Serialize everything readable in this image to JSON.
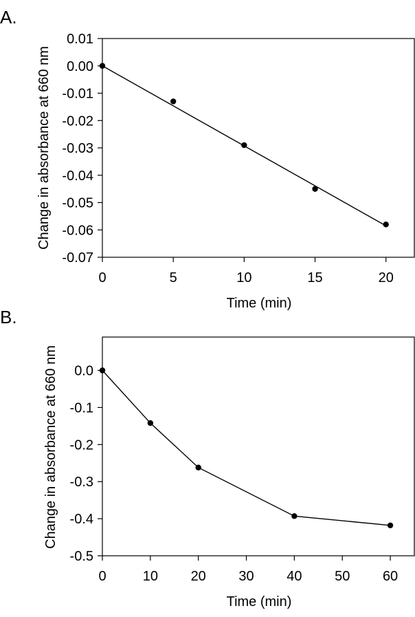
{
  "chart_data": [
    {
      "type": "scatter",
      "panel_label": "A.",
      "title": "",
      "xlabel": "Time (min)",
      "ylabel": "Change in absorbance at 660 nm",
      "xlim": [
        0,
        22
      ],
      "ylim": [
        -0.07,
        0.01
      ],
      "xticks": [
        0,
        5,
        10,
        15,
        20
      ],
      "yticks": [
        0.01,
        0.0,
        -0.01,
        -0.02,
        -0.03,
        -0.04,
        -0.05,
        -0.06,
        -0.07
      ],
      "xtick_labels": [
        "0",
        "5",
        "10",
        "15",
        "20"
      ],
      "ytick_labels": [
        "0.01",
        "0.00",
        "-0.01",
        "-0.02",
        "-0.03",
        "-0.04",
        "-0.05",
        "-0.06",
        "-0.07"
      ],
      "series": [
        {
          "name": "data",
          "x": [
            0,
            5,
            10,
            15,
            20
          ],
          "y": [
            0.0,
            -0.013,
            -0.029,
            -0.045,
            -0.058
          ]
        }
      ],
      "fit_line": {
        "x": [
          0,
          20
        ],
        "y": [
          0.0,
          -0.0585
        ]
      }
    },
    {
      "type": "line",
      "panel_label": "B.",
      "title": "",
      "xlabel": "Time (min)",
      "ylabel": "Change in absorbance at 660 nm",
      "xlim": [
        0,
        65
      ],
      "ylim": [
        -0.5,
        0.09
      ],
      "xticks": [
        0,
        10,
        20,
        30,
        40,
        50,
        60
      ],
      "yticks": [
        0.0,
        -0.1,
        -0.2,
        -0.3,
        -0.4,
        -0.5
      ],
      "xtick_labels": [
        "0",
        "10",
        "20",
        "30",
        "40",
        "50",
        "60"
      ],
      "ytick_labels": [
        "0.0",
        "-0.1",
        "-0.2",
        "-0.3",
        "-0.4",
        "-0.5"
      ],
      "series": [
        {
          "name": "data",
          "x": [
            0,
            10,
            20,
            40,
            60
          ],
          "y": [
            0.0,
            -0.142,
            -0.262,
            -0.393,
            -0.418
          ]
        }
      ]
    }
  ]
}
